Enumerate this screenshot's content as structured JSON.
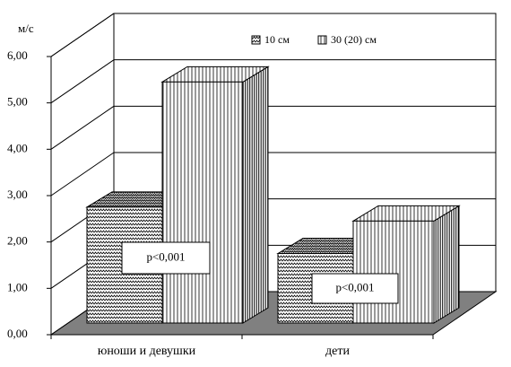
{
  "chart_data": {
    "type": "bar3d",
    "y_label": "м/с",
    "categories": [
      "юноши и девушки",
      "дети"
    ],
    "series": [
      {
        "name": "10 см",
        "values": [
          2.5,
          1.5
        ]
      },
      {
        "name": "30 (20) см",
        "values": [
          5.2,
          2.2
        ]
      }
    ],
    "ylim": [
      0,
      6
    ],
    "yticks": [
      {
        "value": 0,
        "label": "0,00"
      },
      {
        "value": 1,
        "label": "1,00"
      },
      {
        "value": 2,
        "label": "2,00"
      },
      {
        "value": 3,
        "label": "3,00"
      },
      {
        "value": 4,
        "label": "4,00"
      },
      {
        "value": 5,
        "label": "5,00"
      },
      {
        "value": 6,
        "label": "6,00"
      }
    ],
    "grid": true,
    "annotations": [
      "p<0,001",
      "p<0,001"
    ]
  }
}
